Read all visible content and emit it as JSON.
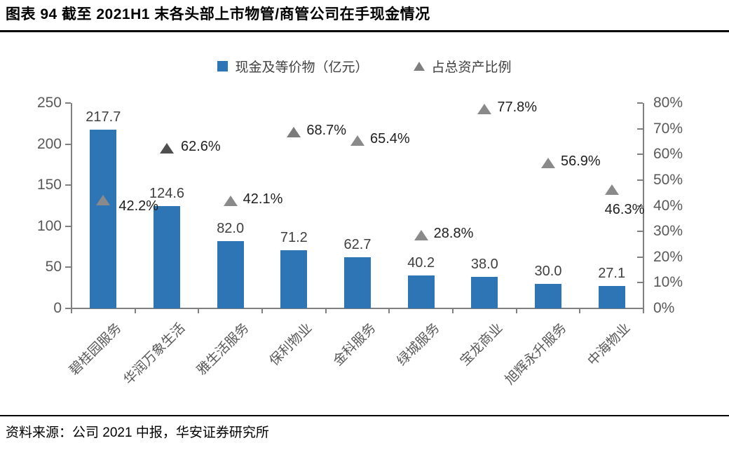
{
  "header": {
    "title": "图表 94 截至 2021H1 末各头部上市物管/商管公司在手现金情况"
  },
  "legend": {
    "items": [
      {
        "label": "现金及等价物（亿元）",
        "marker": "square",
        "color": "#2E75B6"
      },
      {
        "label": "占总资产比例",
        "marker": "triangle",
        "color": "#7F7F7F"
      }
    ]
  },
  "chart_data": {
    "type": "bar",
    "title": "截至 2021H1 末各头部上市物管/商管公司在手现金情况",
    "categories": [
      "碧桂园服务",
      "华润万象生活",
      "雅生活服务",
      "保利物业",
      "金科服务",
      "绿城服务",
      "宝龙商业",
      "旭辉永升服务",
      "中海物业"
    ],
    "series": [
      {
        "name": "现金及等价物（亿元）",
        "type": "bar",
        "axis": "left",
        "color": "#2E75B6",
        "values": [
          217.7,
          124.6,
          82.0,
          71.2,
          62.7,
          40.2,
          38.0,
          30.0,
          27.1
        ],
        "value_labels": [
          "217.7",
          "124.6",
          "82.0",
          "71.2",
          "62.7",
          "40.2",
          "38.0",
          "30.0",
          "27.1"
        ]
      },
      {
        "name": "占总资产比例",
        "type": "scatter",
        "marker": "triangle",
        "axis": "right",
        "color": "#7F7F7F",
        "values": [
          42.2,
          62.6,
          42.1,
          68.7,
          65.4,
          28.8,
          77.8,
          56.9,
          46.3
        ],
        "value_labels": [
          "42.2%",
          "62.6%",
          "42.1%",
          "68.7%",
          "65.4%",
          "28.8%",
          "77.8%",
          "56.9%",
          "46.3%"
        ],
        "point_colors": [
          "#8A8A8A",
          "#4F4F4F",
          "#8A8A8A",
          "#7A7A7A",
          "#8A8A8A",
          "#8A8A8A",
          "#8A8A8A",
          "#8A8A8A",
          "#8A8A8A"
        ],
        "label_offsets": [
          [
            22,
            10
          ],
          [
            20,
            -1
          ],
          [
            18,
            -1
          ],
          [
            18,
            -1
          ],
          [
            18,
            -1
          ],
          [
            18,
            -1
          ],
          [
            18,
            -1
          ],
          [
            18,
            -1
          ],
          [
            -10,
            30
          ]
        ]
      }
    ],
    "left_axis": {
      "min": 0,
      "max": 250,
      "step": 50,
      "ticks": [
        "0",
        "50",
        "100",
        "150",
        "200",
        "250"
      ]
    },
    "right_axis": {
      "min": 0,
      "max": 80,
      "step": 10,
      "ticks": [
        "0%",
        "10%",
        "20%",
        "30%",
        "40%",
        "50%",
        "60%",
        "70%",
        "80%"
      ]
    },
    "grid": false,
    "legend_position": "top",
    "colors": {
      "axis_line": "#808080",
      "axis_text": "#595959",
      "bar_value_label": "#404040",
      "pct_value_label": "#1F1F1F",
      "category_label": "#595959"
    }
  },
  "footer": {
    "source": "资料来源：公司 2021 中报，华安证券研究所"
  }
}
